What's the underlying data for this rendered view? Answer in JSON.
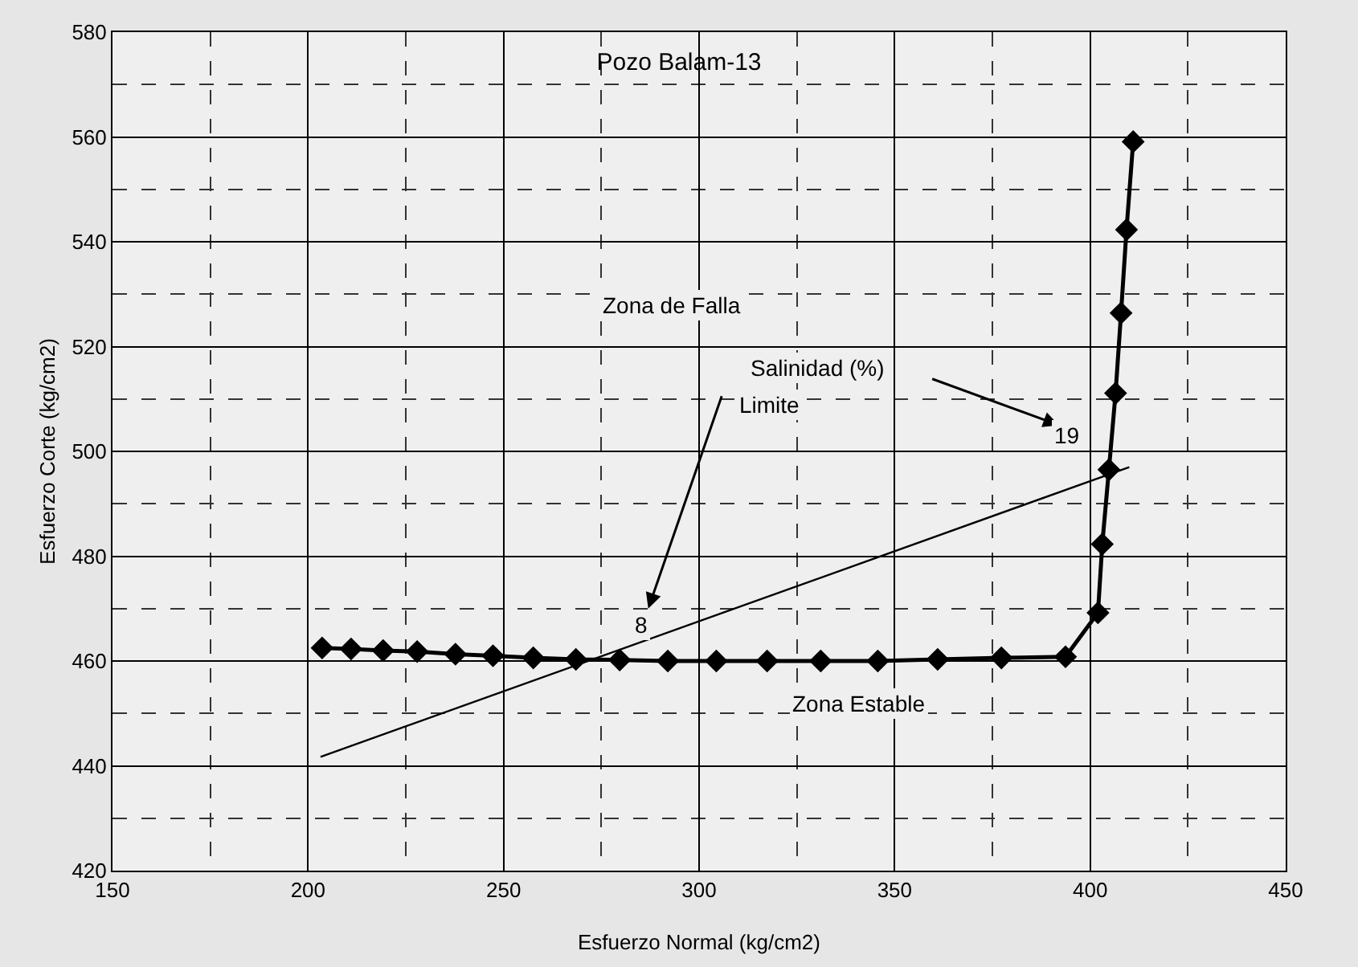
{
  "chart_data": {
    "type": "line",
    "title": "Pozo Balam-13",
    "xlabel": "Esfuerzo Normal (kg/cm2)",
    "ylabel": "Esfuerzo Corte (kg/cm2)",
    "xlim": [
      150,
      450
    ],
    "xticks": [
      150,
      200,
      250,
      300,
      350,
      400,
      450
    ],
    "ylim": [
      420,
      580
    ],
    "yticks": [
      420,
      440,
      460,
      480,
      500,
      520,
      540,
      560,
      580
    ],
    "grid": true,
    "line_style": "solid",
    "series": [
      {
        "marker": "diamond",
        "color": "#000000",
        "x": [
          203.6,
          211,
          219.2,
          227.9,
          237.7,
          247.3,
          257.6,
          268.5,
          279.7,
          292,
          304.4,
          317.4,
          331.1,
          345.7,
          361,
          377.3,
          393.7,
          402,
          403.1,
          404.8,
          406.5,
          407.9,
          409.3,
          411
        ],
        "values": [
          462.5,
          462.3,
          462,
          461.8,
          461.3,
          461,
          460.6,
          460.3,
          460.2,
          460,
          460,
          460,
          460,
          460,
          460.3,
          460.6,
          460.8,
          469.2,
          482.3,
          496.5,
          511.1,
          526.4,
          542.3,
          559.1
        ]
      },
      {
        "marker": "none",
        "color": "#000000",
        "x": [
          203.2,
          410
        ],
        "values": [
          441.7,
          497
        ]
      }
    ],
    "annotations": [
      "Zona de Falla",
      "Salinidad (%)",
      "Limite",
      "8",
      "19",
      "Zona Estable"
    ]
  }
}
